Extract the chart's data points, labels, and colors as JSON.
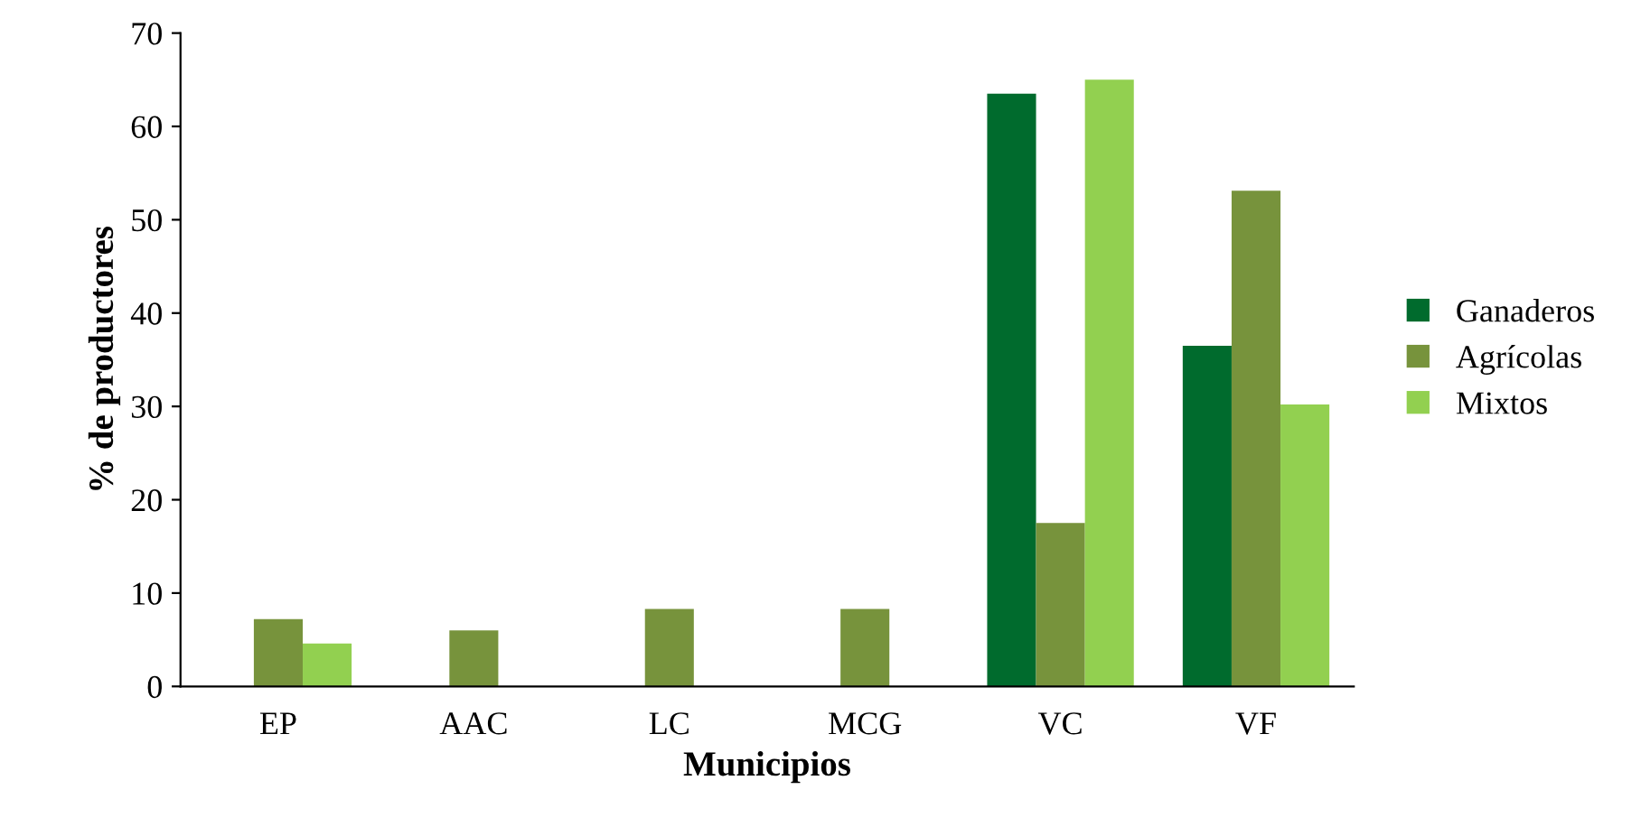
{
  "chart_data": {
    "type": "bar",
    "xlabel": "Municipios",
    "ylabel": "% de productores",
    "categories": [
      "EP",
      "AAC",
      "LC",
      "MCG",
      "VC",
      "VF"
    ],
    "series": [
      {
        "name": "Ganaderos",
        "color": "#006b2d",
        "values": [
          null,
          null,
          null,
          null,
          63.5,
          36.5
        ]
      },
      {
        "name": "Agrícolas",
        "color": "#77933c",
        "values": [
          7.2,
          6,
          8.3,
          8.3,
          17.5,
          53.1
        ]
      },
      {
        "name": "Mixtos",
        "color": "#92d050",
        "values": [
          4.6,
          null,
          null,
          null,
          65,
          30.2
        ]
      }
    ],
    "ylim": [
      0,
      70
    ],
    "yticks": [
      0,
      10,
      20,
      30,
      40,
      50,
      60,
      70
    ],
    "grid": false,
    "legend": "right"
  }
}
